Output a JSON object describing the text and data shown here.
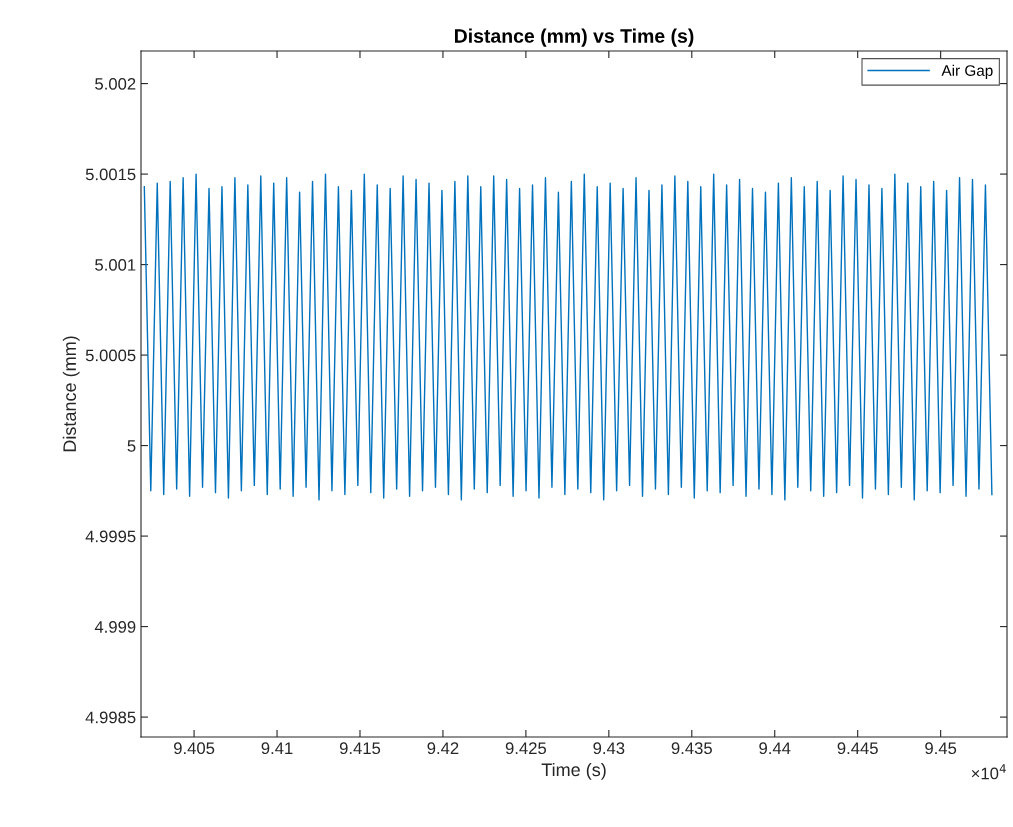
{
  "chart_data": {
    "type": "line",
    "title": "Distance (mm) vs Time (s)",
    "xlabel": "Time (s)",
    "ylabel": "Distance (mm)",
    "annotations": [
      "×10$^{4}$"
    ],
    "xlim": [
      9.4018,
      9.454
    ],
    "ylim": [
      4.99839,
      5.00218
    ],
    "xticks": [
      9.405,
      9.41,
      9.415,
      9.42,
      9.425,
      9.43,
      9.435,
      9.44,
      9.445,
      9.45
    ],
    "yticks": [
      4.9985,
      4.999,
      4.9995,
      5,
      5.0005,
      5.001,
      5.0015,
      5.002
    ],
    "grid": false,
    "legend": "top right",
    "line_style": "solid",
    "series": [
      {
        "name": "Air Gap",
        "color": "#0072bd",
        "x": [
          9.402,
          9.40239,
          9.40278,
          9.40317,
          9.40356,
          9.40395,
          9.40434,
          9.40473,
          9.40512,
          9.40551,
          9.4059,
          9.40629,
          9.40668,
          9.40707,
          9.40746,
          9.40785,
          9.40824,
          9.40863,
          9.40902,
          9.40941,
          9.4098,
          9.41019,
          9.41058,
          9.41097,
          9.41136,
          9.41175,
          9.41214,
          9.41253,
          9.41292,
          9.41331,
          9.4137,
          9.41409,
          9.41448,
          9.41487,
          9.41526,
          9.41565,
          9.41604,
          9.41643,
          9.41682,
          9.41721,
          9.4176,
          9.41799,
          9.41838,
          9.41877,
          9.41916,
          9.41955,
          9.41994,
          9.42033,
          9.42072,
          9.42111,
          9.4215,
          9.42189,
          9.42228,
          9.42267,
          9.42306,
          9.42345,
          9.42384,
          9.42423,
          9.42462,
          9.42501,
          9.4254,
          9.42579,
          9.42618,
          9.42657,
          9.42696,
          9.42735,
          9.42774,
          9.42813,
          9.42852,
          9.42891,
          9.4293,
          9.42969,
          9.43008,
          9.43047,
          9.43086,
          9.43125,
          9.43164,
          9.43203,
          9.43242,
          9.43281,
          9.4332,
          9.43359,
          9.43398,
          9.43437,
          9.43476,
          9.43515,
          9.43554,
          9.43593,
          9.43632,
          9.43671,
          9.4371,
          9.43749,
          9.43788,
          9.43827,
          9.43866,
          9.43905,
          9.43944,
          9.43983,
          9.44022,
          9.44061,
          9.441,
          9.44139,
          9.44178,
          9.44217,
          9.44256,
          9.44295,
          9.44334,
          9.44373,
          9.44412,
          9.44451,
          9.4449,
          9.44529,
          9.44568,
          9.44607,
          9.44646,
          9.44685,
          9.44724,
          9.44763,
          9.44802,
          9.44841,
          9.4488,
          9.44919,
          9.44958,
          9.44997,
          9.45036,
          9.45075,
          9.45114,
          9.45153,
          9.45192,
          9.45231,
          9.4527,
          9.45309
        ],
        "values": [
          5.00143,
          4.99975,
          5.00145,
          4.99973,
          5.00146,
          4.99976,
          5.00148,
          4.99972,
          5.0015,
          4.99977,
          5.00142,
          4.99974,
          5.00143,
          4.99971,
          5.00148,
          4.99975,
          5.00144,
          4.99978,
          5.00149,
          4.99973,
          5.00145,
          4.99976,
          5.00148,
          4.99972,
          5.0014,
          4.99977,
          5.00146,
          4.9997,
          5.0015,
          4.99975,
          5.00143,
          4.99973,
          5.00141,
          4.99978,
          5.0015,
          4.99974,
          5.00144,
          4.99971,
          5.00142,
          4.99976,
          5.00149,
          4.99972,
          5.00147,
          4.99975,
          5.00145,
          4.99977,
          5.00141,
          4.99973,
          5.00146,
          4.9997,
          5.00149,
          4.99976,
          5.00143,
          4.99974,
          5.00149,
          4.99978,
          5.00147,
          4.99972,
          5.00142,
          4.99975,
          5.00144,
          4.99971,
          5.00148,
          4.99977,
          5.0014,
          4.99973,
          5.00146,
          4.99976,
          5.0015,
          4.99974,
          5.00143,
          4.9997,
          5.00145,
          4.99975,
          5.00142,
          4.99978,
          5.00148,
          4.99972,
          5.00141,
          4.99976,
          5.00144,
          4.99973,
          5.00149,
          4.99977,
          5.00146,
          4.99971,
          5.00143,
          4.99975,
          5.0015,
          4.99974,
          5.00144,
          4.99978,
          5.00147,
          4.99972,
          5.00142,
          4.99976,
          5.0014,
          4.99973,
          5.00145,
          4.9997,
          5.00148,
          4.99977,
          5.00143,
          4.99975,
          5.00146,
          4.99972,
          5.00141,
          4.99974,
          5.00149,
          4.99978,
          5.00147,
          4.99971,
          5.00144,
          4.99976,
          5.00142,
          4.99973,
          5.0015,
          4.99977,
          5.00145,
          4.9997,
          5.00143,
          4.99975,
          5.00146,
          4.99974,
          5.00141,
          4.99978,
          5.00148,
          4.99972,
          5.00147,
          4.99976,
          5.00144,
          4.99973
        ]
      }
    ]
  }
}
